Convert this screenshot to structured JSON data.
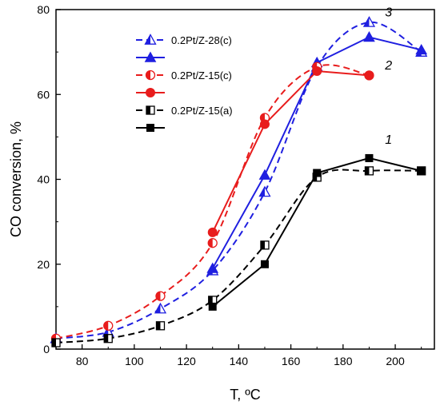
{
  "chart_data": {
    "type": "line",
    "xlabel": "T, ºC",
    "ylabel": "CO conversion, %",
    "xlim": [
      70,
      215
    ],
    "ylim": [
      0,
      80
    ],
    "xticks": [
      80,
      100,
      120,
      140,
      160,
      180,
      200
    ],
    "yticks": [
      0,
      20,
      40,
      60,
      80
    ],
    "grid": false,
    "legend_position": "top-left",
    "series": [
      {
        "name": "0.2Pt/Z-28(c)",
        "color": "#1f1fe0",
        "dash": true,
        "marker": "triangle-half",
        "x": [
          70,
          90,
          110,
          130,
          150,
          170,
          190,
          210
        ],
        "y": [
          2.5,
          4,
          9.5,
          18.5,
          37,
          66.5,
          77,
          70
        ]
      },
      {
        "name": "",
        "color": "#1f1fe0",
        "dash": false,
        "marker": "triangle",
        "x": [
          130,
          150,
          170,
          190,
          210
        ],
        "y": [
          19,
          41,
          67.5,
          73.5,
          70.5
        ]
      },
      {
        "name": "0.2Pt/Z-15(c)",
        "color": "#e81c1c",
        "dash": true,
        "marker": "circle-half",
        "x": [
          70,
          90,
          110,
          130,
          150,
          170,
          190
        ],
        "y": [
          2.5,
          5.5,
          12.5,
          25,
          54.5,
          66.5,
          64.5
        ]
      },
      {
        "name": "",
        "color": "#e81c1c",
        "dash": false,
        "marker": "circle",
        "x": [
          130,
          150,
          170,
          190
        ],
        "y": [
          27.5,
          53,
          65.5,
          64.5
        ]
      },
      {
        "name": "0.2Pt/Z-15(a)",
        "color": "#000000",
        "dash": true,
        "marker": "square-half",
        "x": [
          70,
          90,
          110,
          130,
          150,
          170,
          190,
          210
        ],
        "y": [
          1.5,
          2.5,
          5.5,
          11.5,
          24.5,
          40.5,
          42,
          42
        ]
      },
      {
        "name": "",
        "color": "#000000",
        "dash": false,
        "marker": "square",
        "x": [
          130,
          150,
          170,
          190,
          210
        ],
        "y": [
          10,
          20,
          41.5,
          45,
          42
        ]
      }
    ],
    "annotations": [
      {
        "text": "3",
        "x": 193,
        "y": 78
      },
      {
        "text": "2",
        "x": 193,
        "y": 65.5
      },
      {
        "text": "1",
        "x": 193,
        "y": 48
      }
    ]
  }
}
